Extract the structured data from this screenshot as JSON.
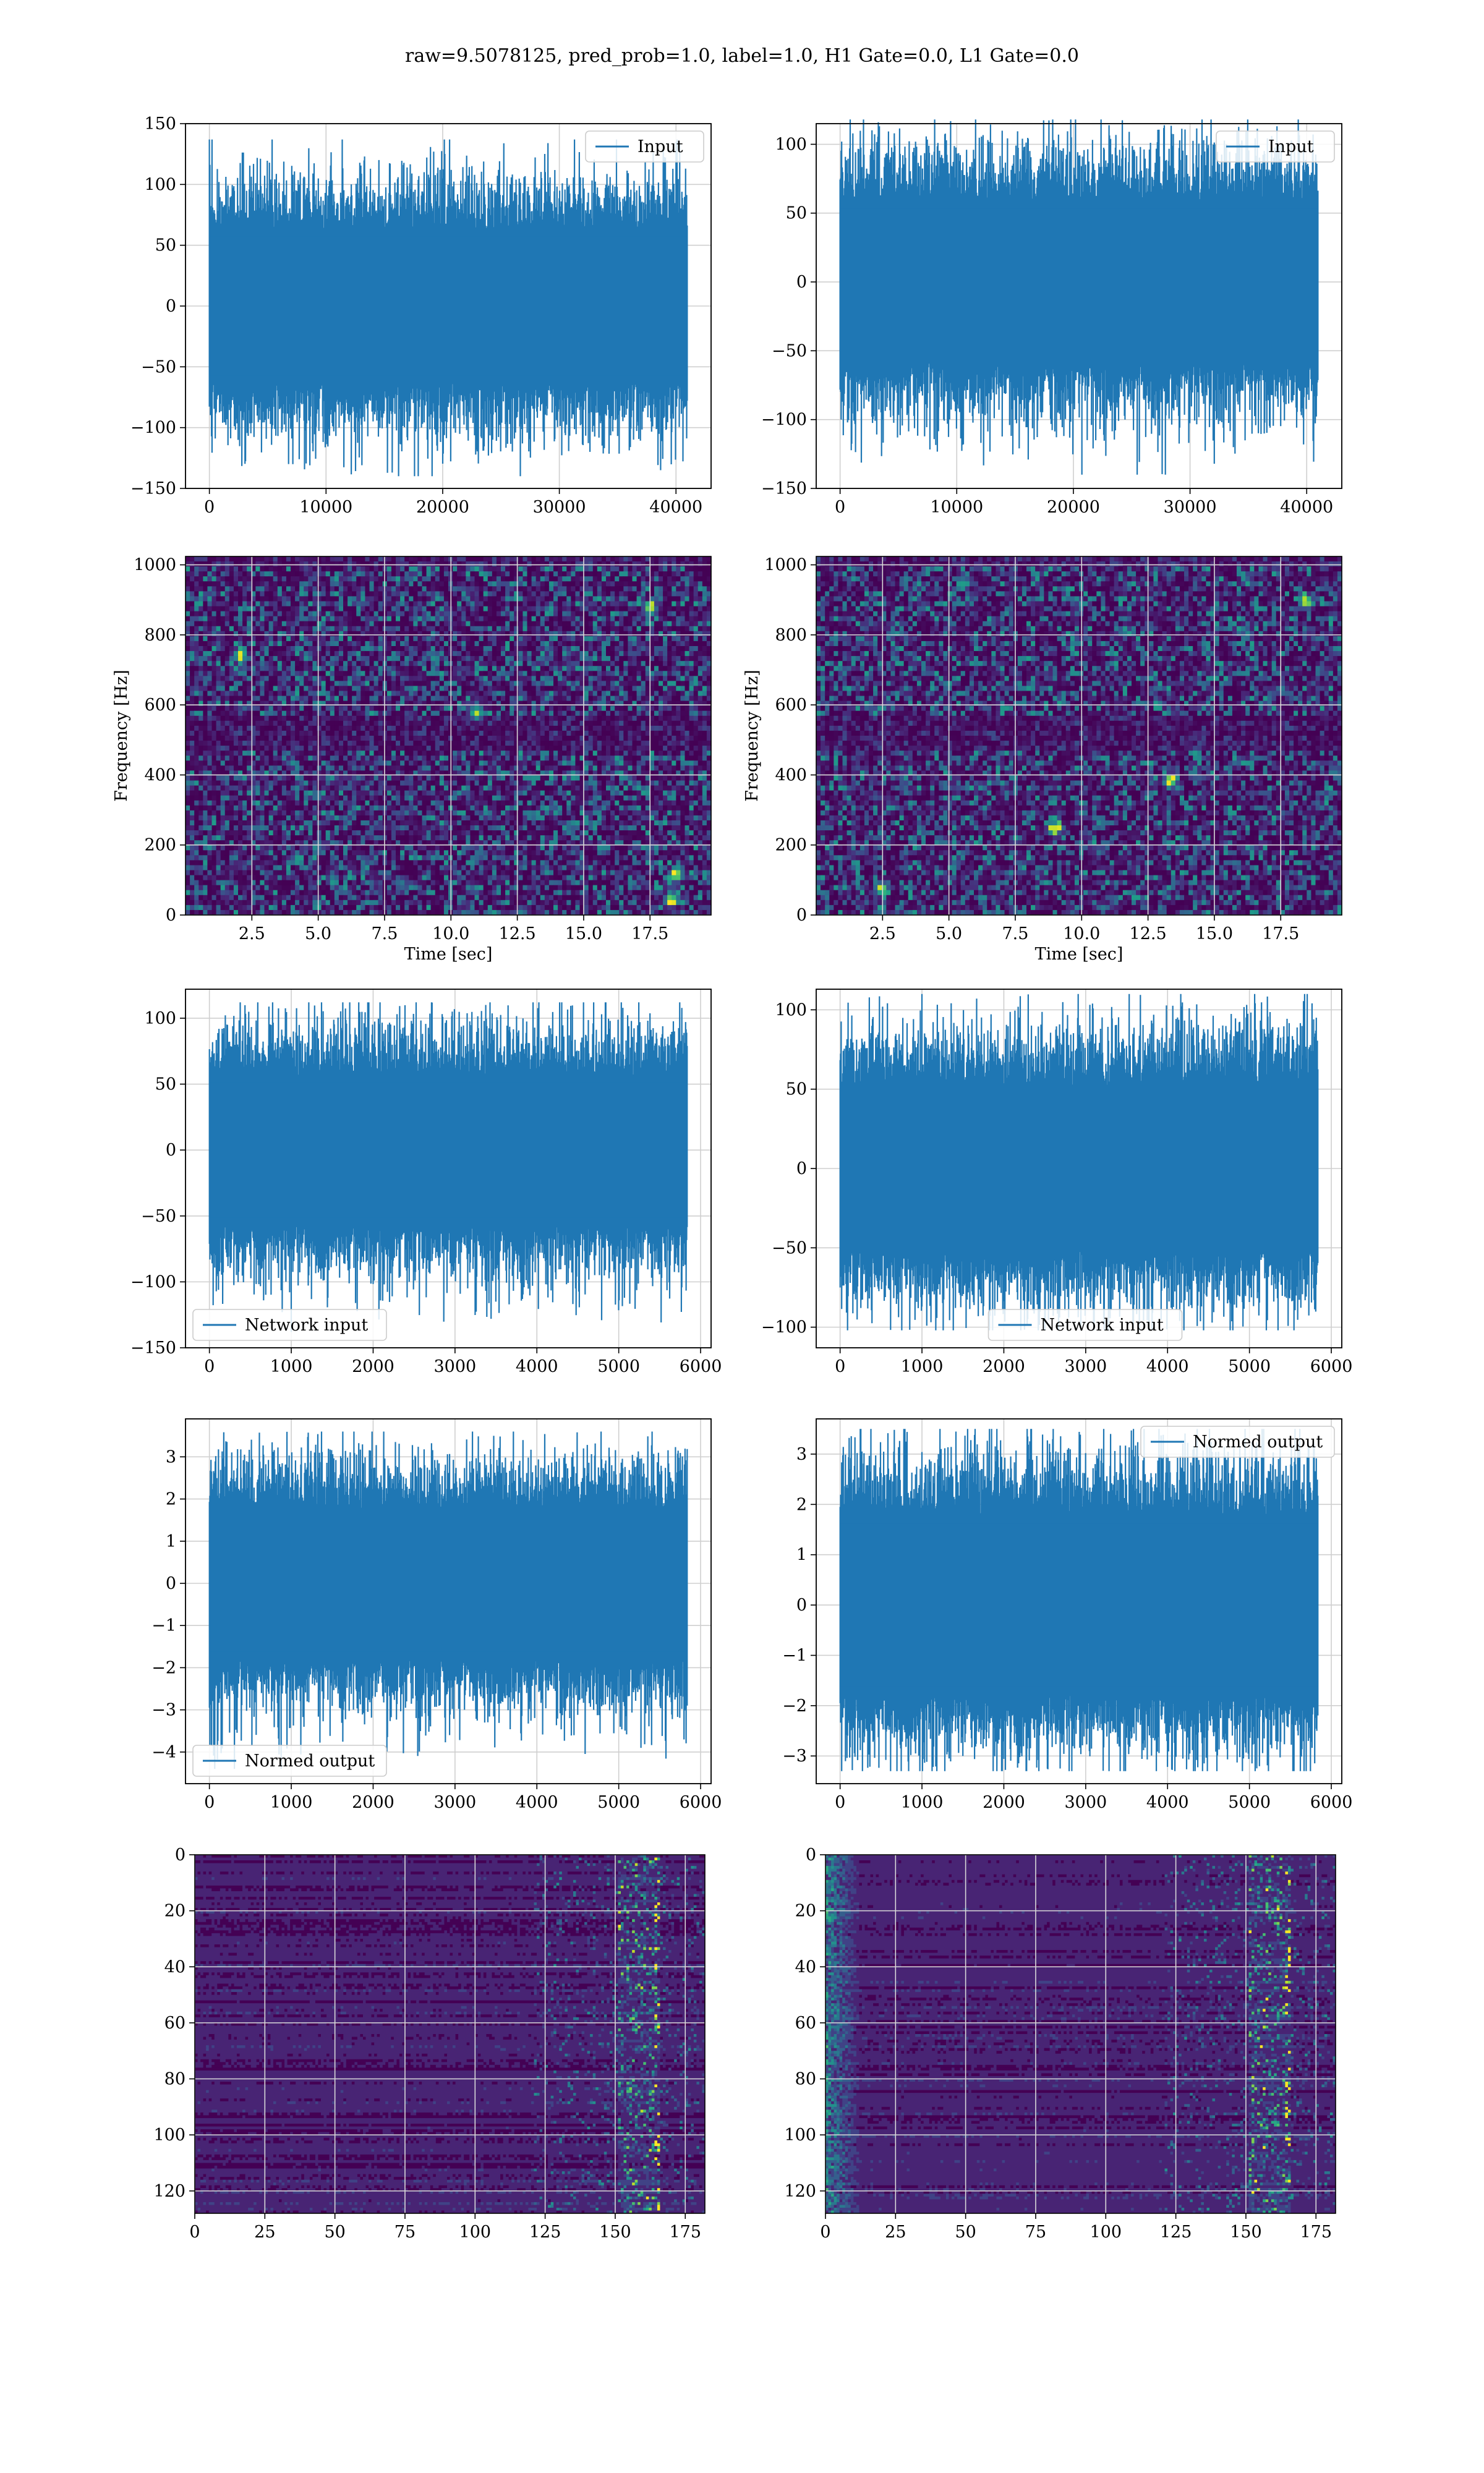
{
  "figure": {
    "title": "raw=9.5078125, pred_prob=1.0, label=1.0, H1 Gate=0.0, L1 Gate=0.0"
  },
  "colors": {
    "series": "#1f77b4",
    "viridis_low": "#440154",
    "viridis_high": "#fde725",
    "grid": "#b0b0b0"
  },
  "chart_data": [
    {
      "id": "h1-input",
      "type": "line",
      "x_range": [
        0,
        40960
      ],
      "xlim": [
        -2048,
        43008
      ],
      "ylim": [
        -150,
        150
      ],
      "xticks": [
        0,
        10000,
        20000,
        30000,
        40000
      ],
      "yticks": [
        -150,
        -100,
        -50,
        0,
        50,
        100,
        150
      ],
      "xticklabels": [
        "0",
        "10000",
        "20000",
        "30000",
        "40000"
      ],
      "yticklabels": [
        "−150",
        "−100",
        "−50",
        "0",
        "50",
        "100",
        "150"
      ],
      "series": [
        {
          "name": "Input",
          "amplitude": 30,
          "min": -140,
          "max": 137
        }
      ],
      "legend": "upper right",
      "grid": true
    },
    {
      "id": "l1-input",
      "type": "line",
      "x_range": [
        0,
        40960
      ],
      "xlim": [
        -2048,
        43008
      ],
      "ylim": [
        -150,
        115
      ],
      "xticks": [
        0,
        10000,
        20000,
        30000,
        40000
      ],
      "yticks": [
        -150,
        -100,
        -50,
        0,
        50,
        100
      ],
      "xticklabels": [
        "0",
        "10000",
        "20000",
        "30000",
        "40000"
      ],
      "yticklabels": [
        "−150",
        "−100",
        "−50",
        "0",
        "50",
        "100"
      ],
      "series": [
        {
          "name": "Input",
          "amplitude": 28,
          "min": -140,
          "max": 118
        }
      ],
      "legend": "upper right",
      "grid": true
    },
    {
      "id": "h1-spectrogram",
      "type": "heatmap",
      "xlim": [
        0,
        19.8
      ],
      "ylim": [
        0,
        1024
      ],
      "xticks": [
        2.5,
        5.0,
        7.5,
        10.0,
        12.5,
        15.0,
        17.5
      ],
      "yticks": [
        0,
        200,
        400,
        600,
        800,
        1000
      ],
      "xticklabels": [
        "2.5",
        "5.0",
        "7.5",
        "10.0",
        "12.5",
        "15.0",
        "17.5"
      ],
      "yticklabels": [
        "0",
        "200",
        "400",
        "600",
        "800",
        "1000"
      ],
      "xlabel": "Time [sec]",
      "ylabel": "Frequency [Hz]",
      "colormap": "viridis",
      "grid": true
    },
    {
      "id": "l1-spectrogram",
      "type": "heatmap",
      "xlim": [
        0,
        19.8
      ],
      "ylim": [
        0,
        1024
      ],
      "xticks": [
        2.5,
        5.0,
        7.5,
        10.0,
        12.5,
        15.0,
        17.5
      ],
      "yticks": [
        0,
        200,
        400,
        600,
        800,
        1000
      ],
      "xticklabels": [
        "2.5",
        "5.0",
        "7.5",
        "10.0",
        "12.5",
        "15.0",
        "17.5"
      ],
      "yticklabels": [
        "0",
        "200",
        "400",
        "600",
        "800",
        "1000"
      ],
      "xlabel": "Time [sec]",
      "ylabel": "Frequency [Hz]",
      "colormap": "viridis",
      "grid": true
    },
    {
      "id": "h1-network-input",
      "type": "line",
      "x_range": [
        0,
        5836
      ],
      "xlim": [
        -292,
        6128
      ],
      "ylim": [
        -150,
        122
      ],
      "xticks": [
        0,
        1000,
        2000,
        3000,
        4000,
        5000,
        6000
      ],
      "yticks": [
        -150,
        -100,
        -50,
        0,
        50,
        100
      ],
      "xticklabels": [
        "0",
        "1000",
        "2000",
        "3000",
        "4000",
        "5000",
        "6000"
      ],
      "yticklabels": [
        "−150",
        "−100",
        "−50",
        "0",
        "50",
        "100"
      ],
      "series": [
        {
          "name": "Network input",
          "amplitude": 27,
          "min": -138,
          "max": 112
        }
      ],
      "legend": "lower left",
      "grid": true
    },
    {
      "id": "l1-network-input",
      "type": "line",
      "x_range": [
        0,
        5836
      ],
      "xlim": [
        -292,
        6128
      ],
      "ylim": [
        -113,
        113
      ],
      "xticks": [
        0,
        1000,
        2000,
        3000,
        4000,
        5000,
        6000
      ],
      "yticks": [
        -100,
        -50,
        0,
        50,
        100
      ],
      "xticklabels": [
        "0",
        "1000",
        "2000",
        "3000",
        "4000",
        "5000",
        "6000"
      ],
      "yticklabels": [
        "−100",
        "−50",
        "0",
        "50",
        "100"
      ],
      "series": [
        {
          "name": "Network input",
          "amplitude": 25,
          "min": -102,
          "max": 110
        }
      ],
      "legend": "lower center",
      "grid": true
    },
    {
      "id": "h1-normed-output",
      "type": "line",
      "x_range": [
        0,
        5836
      ],
      "xlim": [
        -292,
        6128
      ],
      "ylim": [
        -4.75,
        3.9
      ],
      "xticks": [
        0,
        1000,
        2000,
        3000,
        4000,
        5000,
        6000
      ],
      "yticks": [
        -4,
        -3,
        -2,
        -1,
        0,
        1,
        2,
        3
      ],
      "xticklabels": [
        "0",
        "1000",
        "2000",
        "3000",
        "4000",
        "5000",
        "6000"
      ],
      "yticklabels": [
        "−4",
        "−3",
        "−2",
        "−1",
        "0",
        "1",
        "2",
        "3"
      ],
      "series": [
        {
          "name": "Normed output",
          "amplitude": 0.85,
          "min": -4.4,
          "max": 3.6
        }
      ],
      "legend": "lower left",
      "grid": true
    },
    {
      "id": "l1-normed-output",
      "type": "line",
      "x_range": [
        0,
        5836
      ],
      "xlim": [
        -292,
        6128
      ],
      "ylim": [
        -3.55,
        3.7
      ],
      "xticks": [
        0,
        1000,
        2000,
        3000,
        4000,
        5000,
        6000
      ],
      "yticks": [
        -3,
        -2,
        -1,
        0,
        1,
        2,
        3
      ],
      "xticklabels": [
        "0",
        "1000",
        "2000",
        "3000",
        "4000",
        "5000",
        "6000"
      ],
      "yticklabels": [
        "−3",
        "−2",
        "−1",
        "0",
        "1",
        "2",
        "3"
      ],
      "series": [
        {
          "name": "Normed output",
          "amplitude": 0.85,
          "min": -3.3,
          "max": 3.5
        }
      ],
      "legend": "upper right",
      "grid": true
    },
    {
      "id": "h1-feature-map",
      "type": "heatmap",
      "xlim": [
        0,
        182
      ],
      "ylim": [
        128,
        0
      ],
      "xticks": [
        0,
        25,
        50,
        75,
        100,
        125,
        150,
        175
      ],
      "yticks": [
        0,
        20,
        40,
        60,
        80,
        100,
        120
      ],
      "xticklabels": [
        "0",
        "25",
        "50",
        "75",
        "100",
        "125",
        "150",
        "175"
      ],
      "yticklabels": [
        "0",
        "20",
        "40",
        "60",
        "80",
        "100",
        "120"
      ],
      "colormap": "viridis",
      "grid": true
    },
    {
      "id": "l1-feature-map",
      "type": "heatmap",
      "xlim": [
        0,
        182
      ],
      "ylim": [
        128,
        0
      ],
      "xticks": [
        0,
        25,
        50,
        75,
        100,
        125,
        150,
        175
      ],
      "yticks": [
        0,
        20,
        40,
        60,
        80,
        100,
        120
      ],
      "xticklabels": [
        "0",
        "25",
        "50",
        "75",
        "100",
        "125",
        "150",
        "175"
      ],
      "yticklabels": [
        "0",
        "20",
        "40",
        "60",
        "80",
        "100",
        "120"
      ],
      "colormap": "viridis",
      "grid": true
    }
  ]
}
